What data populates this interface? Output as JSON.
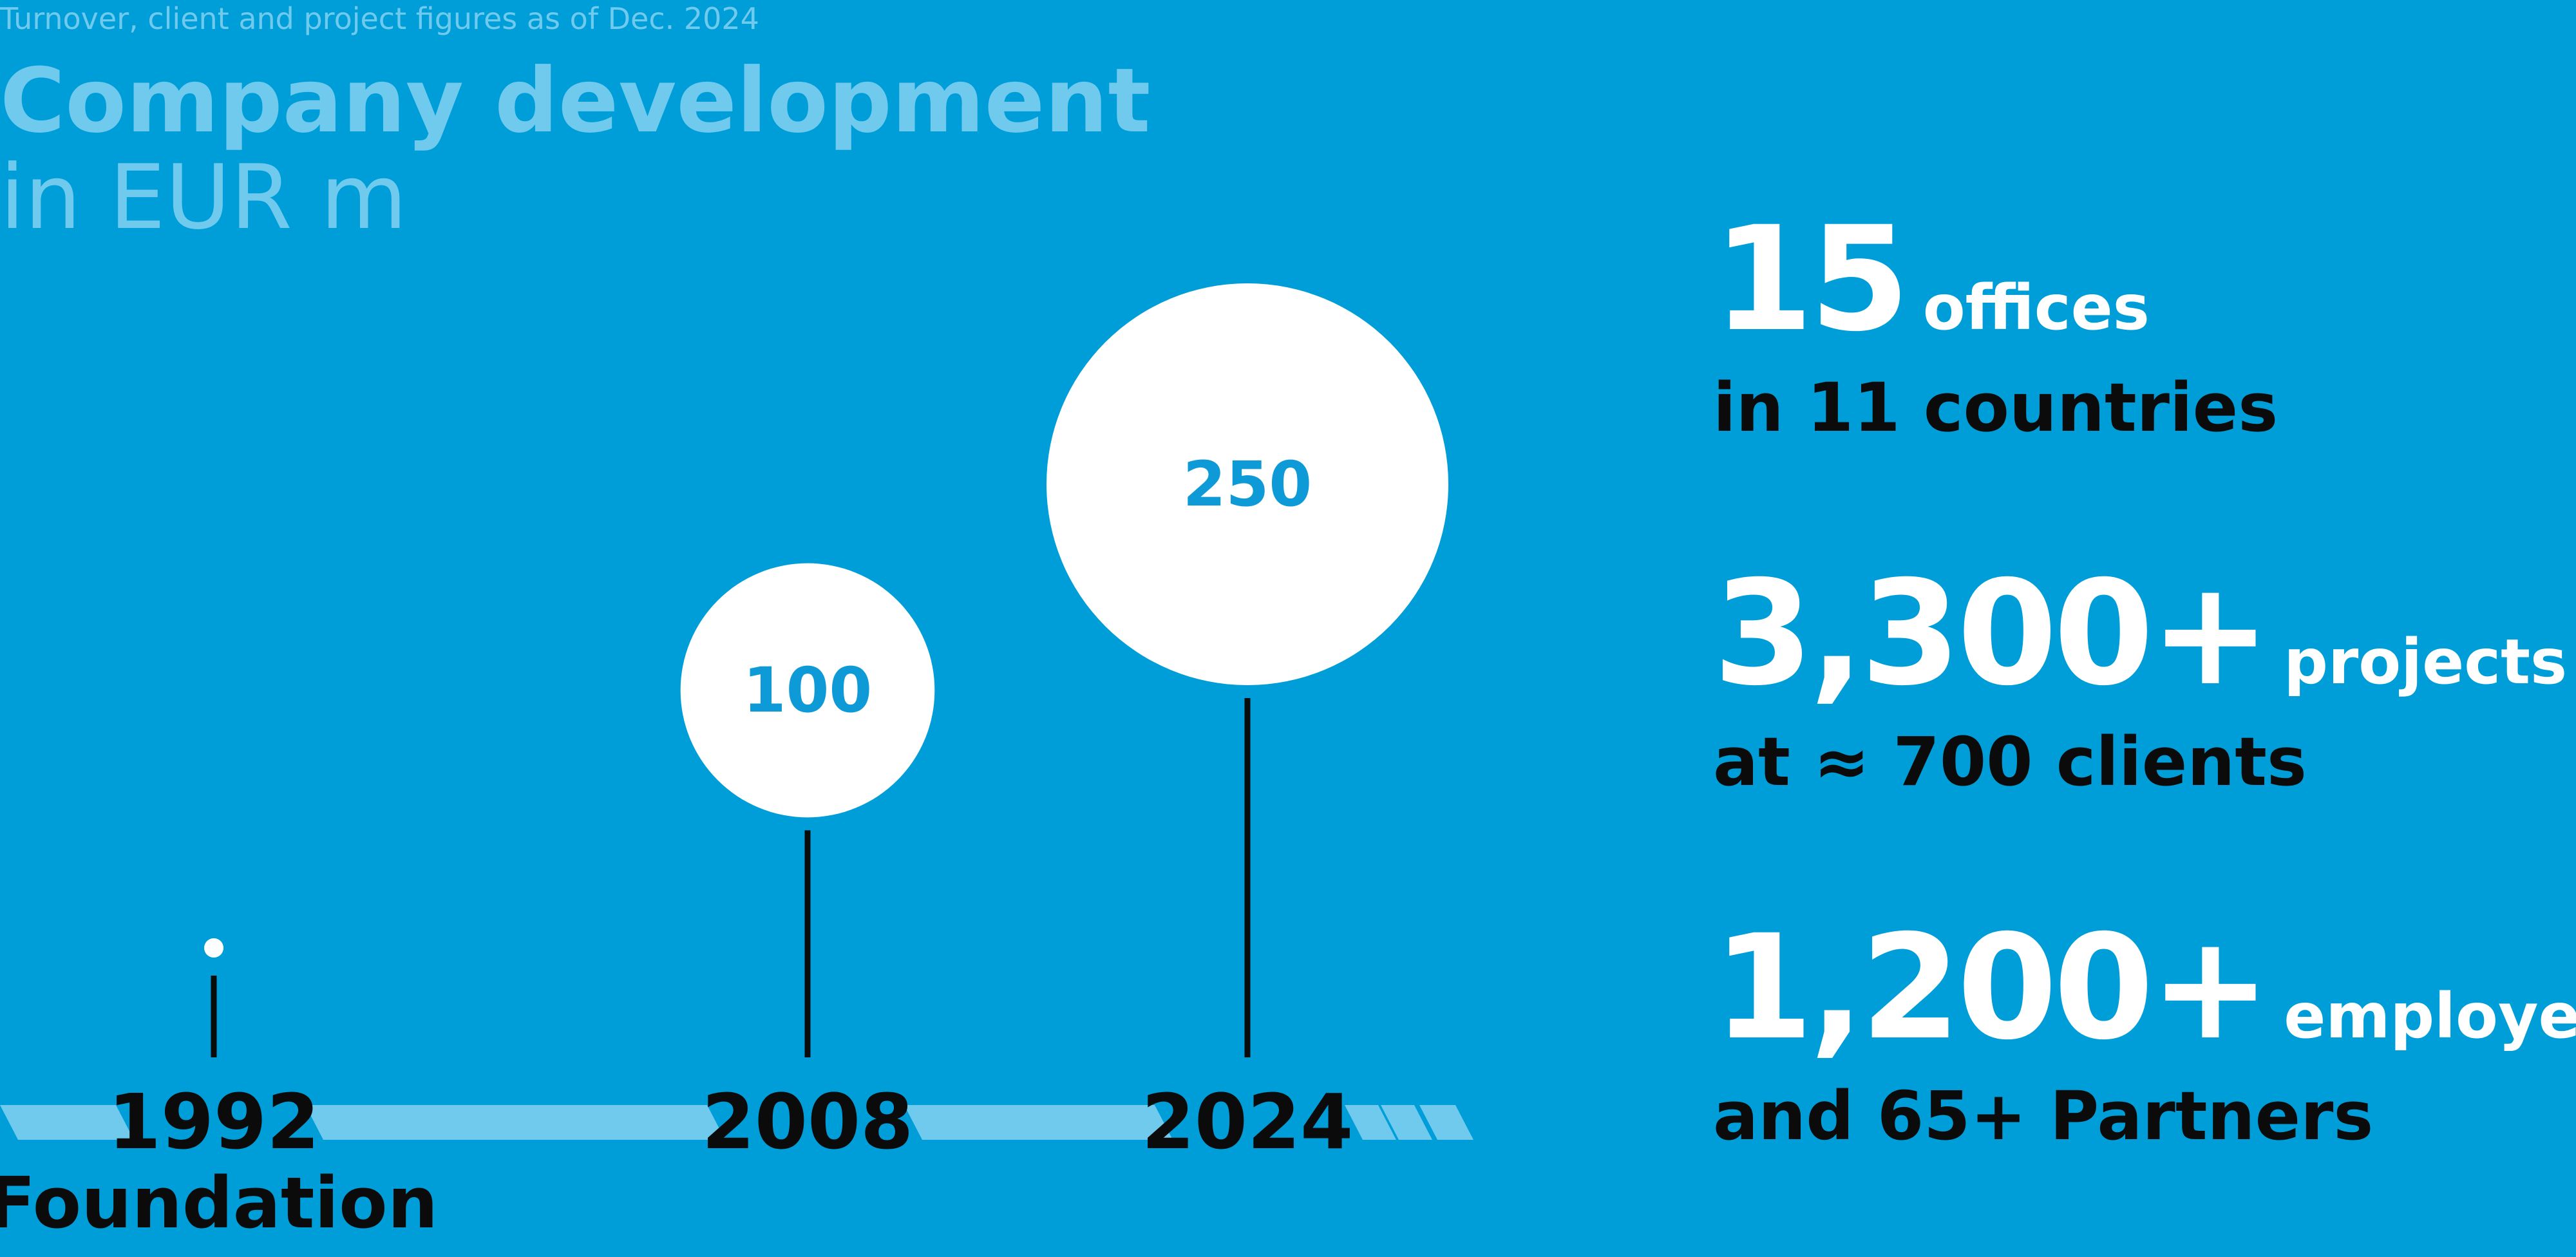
{
  "header": {
    "note": "Turnover, client and project figures as of Dec. 2024",
    "title_line1": "Company development",
    "title_line2": "in EUR m"
  },
  "chart_data": {
    "type": "bubble-timeline",
    "title": "Company development",
    "unit": "EUR m",
    "categories": [
      "1992",
      "2008",
      "2024"
    ],
    "values": [
      null,
      100,
      250
    ],
    "labels": [
      "",
      "100",
      "250"
    ],
    "annotations": [
      "Foundation",
      "",
      ""
    ]
  },
  "stats": [
    {
      "value": "15",
      "unit": "offices",
      "sub": "in 11 countries"
    },
    {
      "value": "3,300+",
      "unit": "projects",
      "sub": "at ≈ 700 clients"
    },
    {
      "value": "1,200+",
      "unit": "employees",
      "sub": "and 65+ Partners"
    }
  ],
  "colors": {
    "background": "#009ed8",
    "light": "#6fcaee",
    "bubble": "#ffffff",
    "bubble_text": "#0d9ad6",
    "dark": "#0b0b0b"
  }
}
